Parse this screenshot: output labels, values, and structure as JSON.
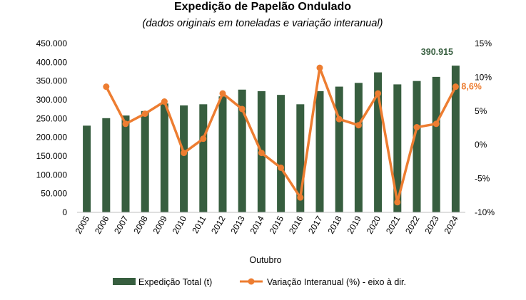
{
  "chart_data": {
    "type": "bar+line",
    "title": "Expedição de Papelão Ondulado",
    "subtitle": "(dados originais em toneladas e variação interanual)",
    "xlabel": "Outubro",
    "categories": [
      "2005",
      "2006",
      "2007",
      "2008",
      "2009",
      "2010",
      "2011",
      "2012",
      "2013",
      "2014",
      "2015",
      "2016",
      "2017",
      "2018",
      "2019",
      "2020",
      "2021",
      "2022",
      "2023",
      "2024"
    ],
    "series": [
      {
        "name": "Expedição Total (t)",
        "type": "bar",
        "axis": "left",
        "color": "#375E3F",
        "values": [
          231000,
          251000,
          258000,
          270000,
          290000,
          285000,
          288000,
          309000,
          327000,
          323000,
          313000,
          288000,
          323000,
          335000,
          345000,
          373000,
          341000,
          350000,
          361000,
          390915
        ]
      },
      {
        "name": "Variação Interanual (%) - eixo à dir.",
        "type": "line",
        "axis": "right",
        "color": "#ED7D31",
        "values": [
          null,
          8.6,
          3.1,
          4.6,
          6.4,
          -1.2,
          0.9,
          7.6,
          5.3,
          -1.2,
          -3.4,
          -7.8,
          11.4,
          3.8,
          2.9,
          7.6,
          -8.5,
          2.6,
          3.1,
          8.6
        ]
      }
    ],
    "y_left": {
      "ylim": [
        0,
        450000
      ],
      "ticks": [
        0,
        50000,
        100000,
        150000,
        200000,
        250000,
        300000,
        350000,
        400000,
        450000
      ],
      "tick_labels": [
        "0",
        "50.000",
        "100.000",
        "150.000",
        "200.000",
        "250.000",
        "300.000",
        "350.000",
        "400.000",
        "450.000"
      ]
    },
    "y_right": {
      "ylim": [
        -10,
        15
      ],
      "ticks": [
        -10,
        -5,
        0,
        5,
        10,
        15
      ],
      "tick_labels": [
        "-10%",
        "-5%",
        "0%",
        "5%",
        "10%",
        "15%"
      ]
    },
    "annotations": {
      "last_bar_label": "390.915",
      "last_point_label": "8,6%"
    },
    "grid": false,
    "legend_position": "bottom"
  }
}
